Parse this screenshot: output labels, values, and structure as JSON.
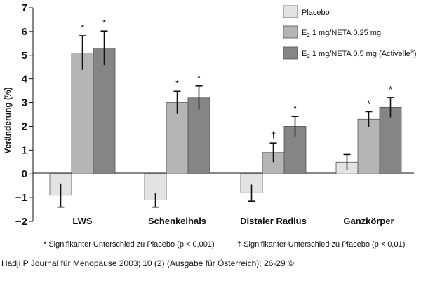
{
  "chart_data": {
    "type": "bar",
    "ylabel": "Veränderung (%)",
    "ylim": [
      -2,
      7
    ],
    "yticks": [
      "7",
      "6",
      "5",
      "4",
      "3",
      "2",
      "1",
      "0",
      "−1",
      "−2"
    ],
    "categories": [
      "LWS",
      "Schenkelhals",
      "Distaler Radius",
      "Ganzkörper"
    ],
    "series": [
      {
        "name": "Placebo",
        "color": "#e3e3e3",
        "values": [
          -0.9,
          -1.1,
          -0.8,
          0.5
        ],
        "error": [
          0.5,
          0.3,
          0.35,
          0.32
        ],
        "markers": [
          "",
          "",
          "",
          ""
        ]
      },
      {
        "name_prefix": "E",
        "name_sub": "2",
        "name_suffix": " 1 mg/NETA 0,25 mg",
        "color": "#b5b5b5",
        "values": [
          5.1,
          3.0,
          0.9,
          2.3
        ],
        "error": [
          0.72,
          0.48,
          0.4,
          0.32
        ],
        "markers": [
          "*",
          "*",
          "†",
          "*"
        ]
      },
      {
        "name_prefix": "E",
        "name_sub": "2",
        "name_suffix": " 1 mg/NETA 0,5 mg (Activelle",
        "name_reg": "®",
        "name_close": ")",
        "color": "#858585",
        "values": [
          5.3,
          3.2,
          2.0,
          2.8
        ],
        "error": [
          0.72,
          0.5,
          0.42,
          0.42
        ],
        "markers": [
          "*",
          "*",
          "*",
          "*"
        ]
      }
    ],
    "legend_position": "top-right",
    "grid": false
  },
  "footnotes": {
    "left": "* Signifikanter Unterschied zu Placebo (p < 0,001)",
    "right": "† Signifikanter Unterschied zu Placebo (p < 0,01)"
  },
  "source": "Hadji P Journal für Menopause 2003; 10 (2) (Ausgabe für Österreich): 26-29 ©"
}
